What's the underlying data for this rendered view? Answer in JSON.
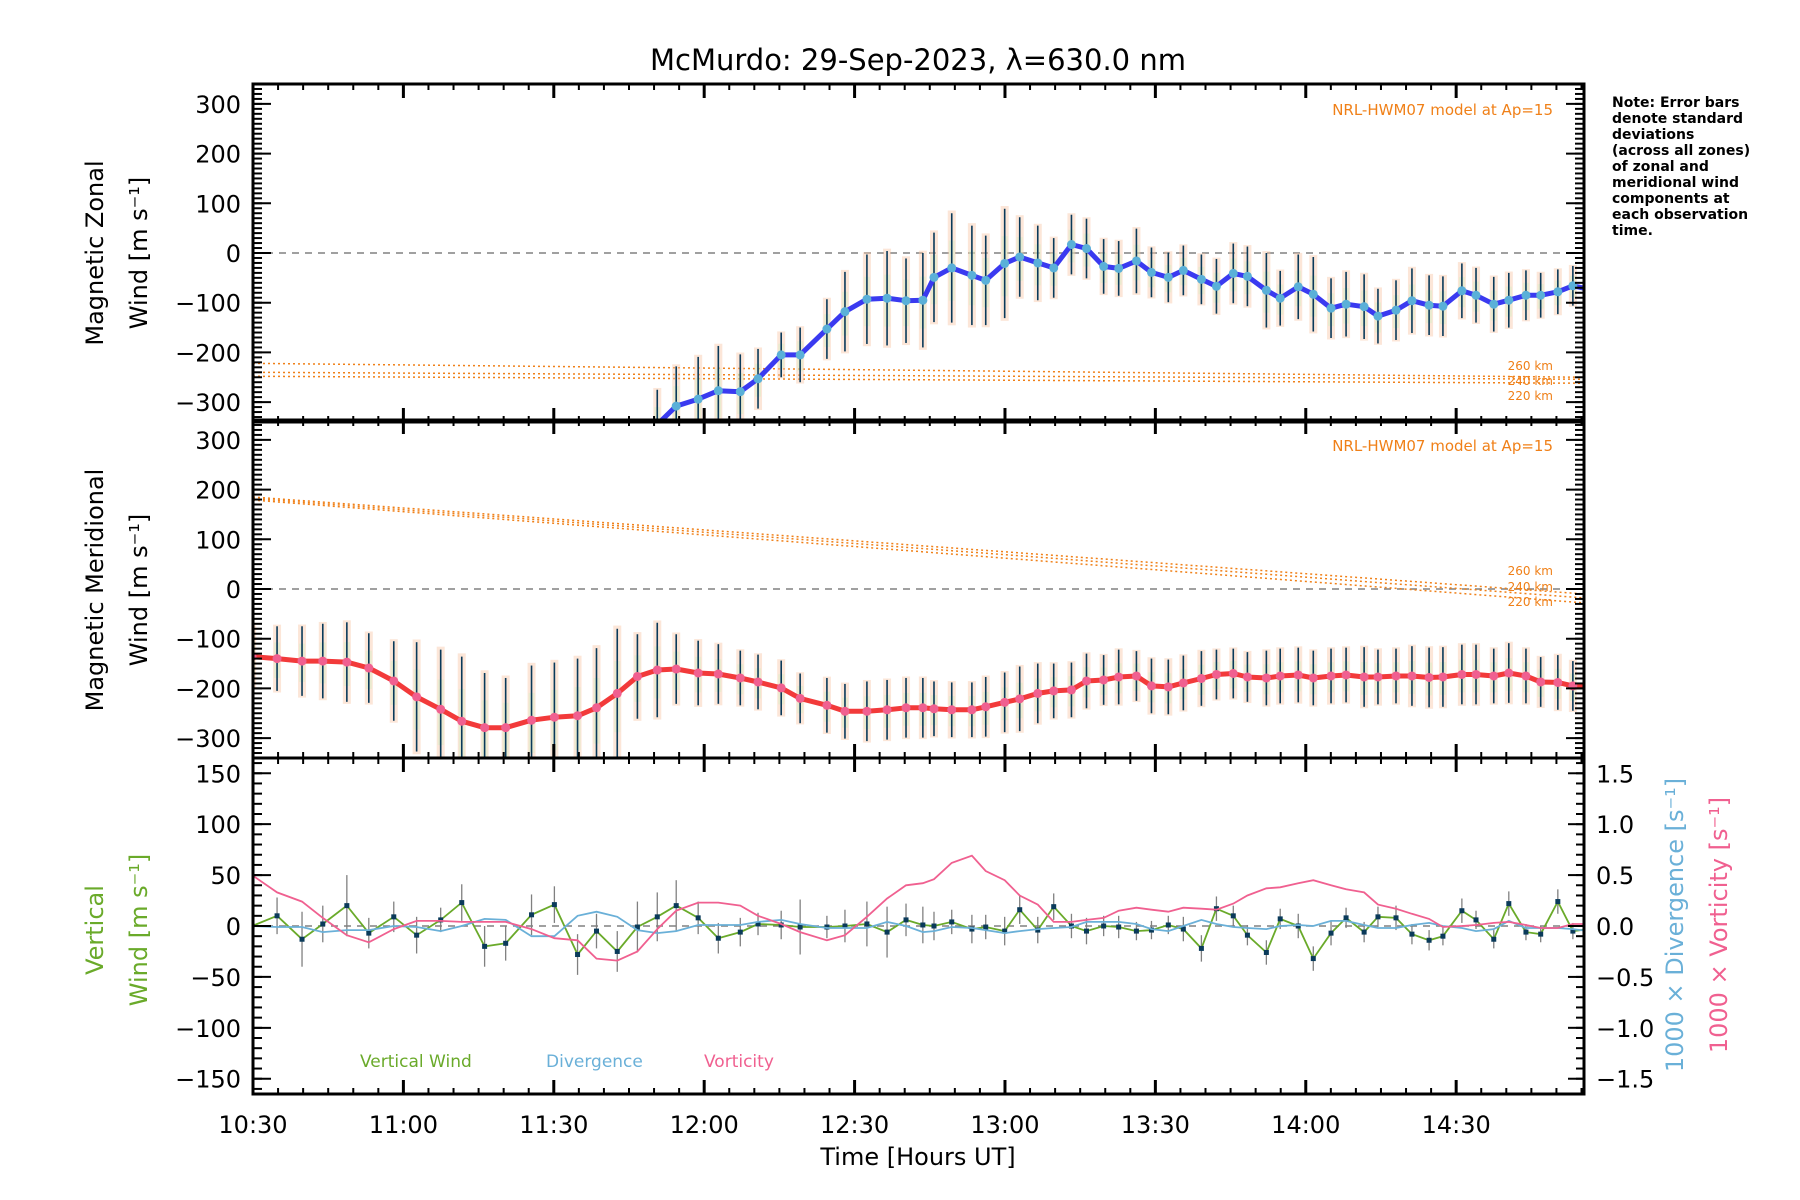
{
  "title": "McMurdo: 29-Sep-2023, λ=630.0 nm",
  "note": [
    "Note: Error bars",
    "denote standard",
    "deviations",
    "(across all zones)",
    "of zonal and",
    "meridional wind",
    "components at",
    "each observation",
    "time."
  ],
  "colors": {
    "zonal": "#3a3af0",
    "meridional": "#f23a3a",
    "vertical": "#6aaa2a",
    "divergence": "#6ab0d8",
    "vorticity": "#f06090",
    "model": "#f08018",
    "marker_zonal": "#5ab0d8",
    "marker_meridional": "#f06090",
    "errbar": "#0a3a5a",
    "zero": "#808080"
  },
  "chart_data": [
    {
      "type": "line",
      "panel": "zonal",
      "ylabel": [
        "Magnetic Zonal",
        "Wind [m s⁻¹]"
      ],
      "ylim": [
        -340,
        340
      ],
      "yticks": [
        "300",
        "200",
        "100",
        "0",
        "−100",
        "−200",
        "−300"
      ],
      "ytick_values": [
        300,
        200,
        100,
        0,
        -100,
        -200,
        -300
      ],
      "xlim": [
        10.5,
        14.925
      ],
      "model_label": "NRL-HWM07 model at Ap=15",
      "model_altitudes": [
        "260 km",
        "240 km",
        "220 km"
      ],
      "model_series": [
        {
          "name": "260 km",
          "x": [
            10.5,
            14.925
          ],
          "values": [
            -222,
            -250
          ]
        },
        {
          "name": "240 km",
          "x": [
            10.5,
            14.925
          ],
          "values": [
            -240,
            -254
          ]
        },
        {
          "name": "220 km",
          "x": [
            10.5,
            14.925
          ],
          "values": [
            -248,
            -262
          ]
        }
      ],
      "series_name": "Magnetic Zonal Wind",
      "values": [
        null,
        null,
        null,
        null,
        null,
        null,
        null,
        null,
        null,
        null,
        null,
        null,
        null,
        null,
        null,
        null,
        null,
        null,
        -345,
        -308,
        -294,
        -277,
        -279,
        -253,
        -205,
        -205,
        -153,
        -118,
        -93,
        -91,
        -96,
        -95,
        -49,
        -30,
        -45,
        -55,
        -21,
        -8,
        -20,
        -30,
        17,
        9,
        -27,
        -31,
        -16,
        -39,
        -49,
        -35,
        -53,
        -67,
        -41,
        -47,
        -75,
        -91,
        -68,
        -83,
        -111,
        -103,
        -108,
        -127,
        -115,
        -96,
        -105,
        -107,
        -76,
        -85,
        -103,
        -95,
        -85,
        -85,
        -78,
        -66,
        -73
      ],
      "error": [
        null,
        null,
        null,
        null,
        null,
        null,
        null,
        null,
        null,
        null,
        null,
        null,
        null,
        40,
        45,
        50,
        55,
        60,
        70,
        80,
        85,
        90,
        75,
        60,
        45,
        55,
        60,
        80,
        90,
        95,
        85,
        95,
        90,
        110,
        100,
        90,
        110,
        80,
        75,
        60,
        60,
        60,
        55,
        55,
        65,
        50,
        50,
        50,
        50,
        55,
        60,
        60,
        75,
        55,
        65,
        75,
        60,
        65,
        65,
        55,
        60,
        65,
        60,
        60,
        55,
        55,
        55,
        55,
        50,
        45,
        45,
        40,
        40
      ]
    },
    {
      "type": "line",
      "panel": "meridional",
      "ylabel": [
        "Magnetic Meridional",
        "Wind [m s⁻¹]"
      ],
      "ylim": [
        -340,
        340
      ],
      "yticks": [
        "300",
        "200",
        "100",
        "0",
        "−100",
        "−200",
        "−300"
      ],
      "ytick_values": [
        300,
        200,
        100,
        0,
        -100,
        -200,
        -300
      ],
      "xlim": [
        10.5,
        14.925
      ],
      "model_label": "NRL-HWM07 model at Ap=15",
      "model_altitudes": [
        "260 km",
        "240 km",
        "220 km"
      ],
      "model_series": [
        {
          "name": "260 km",
          "x": [
            10.5,
            14.925
          ],
          "values": [
            185,
            -10
          ]
        },
        {
          "name": "240 km",
          "x": [
            10.5,
            14.925
          ],
          "values": [
            182,
            -18
          ]
        },
        {
          "name": "220 km",
          "x": [
            10.5,
            14.925
          ],
          "values": [
            179,
            -28
          ]
        }
      ],
      "series_name": "Magnetic Meridional Wind",
      "values": [
        -136,
        -140,
        -145,
        -145,
        -147,
        -159,
        -185,
        -217,
        -242,
        -266,
        -279,
        -279,
        -264,
        -258,
        -255,
        -239,
        -210,
        -176,
        -163,
        -161,
        -169,
        -171,
        -179,
        -187,
        -199,
        -220,
        -234,
        -246,
        -246,
        -243,
        -239,
        -239,
        -241,
        -243,
        -243,
        -237,
        -228,
        -221,
        -210,
        -205,
        -203,
        -185,
        -183,
        -177,
        -175,
        -195,
        -197,
        -189,
        -180,
        -172,
        -170,
        -177,
        -179,
        -175,
        -173,
        -179,
        -175,
        -173,
        -177,
        -177,
        -175,
        -175,
        -178,
        -177,
        -172,
        -172,
        -175,
        -169,
        -175,
        -187,
        -188,
        -195,
        -198
      ],
      "error": [
        60,
        65,
        70,
        75,
        80,
        70,
        80,
        110,
        120,
        130,
        110,
        100,
        110,
        110,
        115,
        120,
        130,
        85,
        95,
        70,
        65,
        60,
        55,
        55,
        55,
        50,
        55,
        55,
        60,
        60,
        60,
        60,
        55,
        55,
        55,
        60,
        60,
        65,
        60,
        55,
        55,
        55,
        50,
        55,
        50,
        55,
        55,
        55,
        55,
        50,
        50,
        50,
        55,
        55,
        55,
        55,
        55,
        55,
        60,
        55,
        55,
        60,
        60,
        60,
        60,
        60,
        55,
        60,
        55,
        50,
        55,
        50,
        55
      ]
    },
    {
      "type": "line",
      "panel": "vertical",
      "ylabel": [
        "Vertical",
        "Wind [m s⁻¹]"
      ],
      "ylabel_right_div": "1000 × Divergence [s⁻¹]",
      "ylabel_right_vort": "1000 × Vorticity [s⁻¹]",
      "ylim": [
        -165,
        165
      ],
      "yticks": [
        "150",
        "100",
        "50",
        "0",
        "−50",
        "−100",
        "−150"
      ],
      "ytick_values": [
        150,
        100,
        50,
        0,
        -50,
        -100,
        -150
      ],
      "yticks_right": [
        "1.5",
        "1.0",
        "0.5",
        "0.0",
        "−0.5",
        "−1.0",
        "−1.5"
      ],
      "ytick_right_values": [
        1.5,
        1.0,
        0.5,
        0.0,
        -0.5,
        -1.0,
        -1.5
      ],
      "ylim_right": [
        -1.65,
        1.65
      ],
      "xlim": [
        10.5,
        14.925
      ],
      "xlabel": "Time [Hours UT]",
      "xticks": [
        "10:30",
        "11:00",
        "11:30",
        "12:00",
        "12:30",
        "13:00",
        "13:30",
        "14:00",
        "14:30"
      ],
      "xtick_values": [
        10.5,
        11.0,
        11.5,
        12.0,
        12.5,
        13.0,
        13.5,
        14.0,
        14.5
      ],
      "legend": [
        "Vertical Wind",
        "Divergence",
        "Vorticity"
      ],
      "legend_position": "bottom-left",
      "series": [
        {
          "name": "Vertical Wind",
          "values": [
            0,
            10,
            -13,
            2,
            20,
            -7,
            9,
            -9,
            6,
            23,
            -20,
            -17,
            11,
            21,
            -28,
            -5,
            -25,
            -1,
            9,
            20,
            8,
            -12,
            -6,
            2,
            1,
            -1,
            -1,
            0,
            2,
            -6,
            6,
            1,
            0,
            4,
            -3,
            -1,
            -5,
            16,
            -4,
            19,
            0,
            -5,
            0,
            -1,
            -5,
            -4,
            1,
            -3,
            -22,
            17,
            10,
            -9,
            -26,
            7,
            0,
            -32,
            -7,
            8,
            -6,
            9,
            8,
            -8,
            -14,
            -10,
            15,
            6,
            -13,
            22,
            -6,
            -8,
            24,
            -5,
            -3
          ],
          "error": [
            0,
            18,
            27,
            18,
            30,
            15,
            15,
            18,
            12,
            18,
            20,
            17,
            20,
            18,
            20,
            17,
            20,
            25,
            24,
            25,
            16,
            15,
            14,
            11,
            14,
            27,
            11,
            16,
            22,
            25,
            16,
            18,
            14,
            12,
            14,
            12,
            14,
            14,
            13,
            13,
            12,
            13,
            10,
            11,
            9,
            9,
            9,
            12,
            13,
            12,
            10,
            10,
            12,
            10,
            12,
            12,
            12,
            10,
            10,
            10,
            12,
            10,
            10,
            9,
            12,
            9,
            9,
            12,
            8,
            8,
            12,
            8,
            10
          ]
        },
        {
          "name": "Divergence",
          "axis": "right",
          "values": [
            0,
            -0.01,
            -0.01,
            -0.06,
            -0.04,
            -0.04,
            0,
            -0.01,
            -0.05,
            0,
            0.07,
            0.06,
            -0.1,
            -0.1,
            0.1,
            0.14,
            0.09,
            -0.04,
            -0.07,
            -0.05,
            0.01,
            0.01,
            0.01,
            0.04,
            0.06,
            0.02,
            -0.02,
            -0.02,
            -0.02,
            0.04,
            0,
            -0.06,
            -0.05,
            -0.01,
            -0.02,
            -0.04,
            -0.07,
            -0.05,
            -0.03,
            -0.02,
            -0.01,
            0.04,
            0.04,
            0.04,
            0.02,
            -0.03,
            -0.05,
            0,
            0.06,
            0.02,
            -0.01,
            -0.02,
            -0.03,
            0,
            0.01,
            0,
            0.05,
            0.05,
            0.01,
            -0.02,
            -0.02,
            0.01,
            0.03,
            0,
            -0.02,
            -0.05,
            -0.03,
            0.05,
            -0.02,
            -0.02,
            -0.02,
            -0.03,
            -0.05
          ]
        },
        {
          "name": "Vorticity",
          "axis": "right",
          "values": [
            0.5,
            0.33,
            0.24,
            0.08,
            -0.09,
            -0.16,
            -0.03,
            0.05,
            0.05,
            0.04,
            0.04,
            0.04,
            -0.03,
            -0.12,
            -0.14,
            -0.32,
            -0.34,
            -0.25,
            -0.03,
            0.15,
            0.23,
            0.23,
            0.2,
            0.1,
            0.02,
            -0.06,
            -0.14,
            -0.09,
            0.09,
            0.27,
            0.4,
            0.42,
            0.46,
            0.62,
            0.69,
            0.54,
            0.45,
            0.3,
            0.21,
            0.04,
            0.04,
            0.06,
            0.08,
            0.15,
            0.18,
            0.16,
            0.14,
            0.18,
            0.17,
            0.16,
            0.22,
            0.3,
            0.37,
            0.38,
            0.42,
            0.45,
            0.4,
            0.36,
            0.33,
            0.21,
            0.17,
            0.12,
            0.07,
            -0.01,
            0,
            0.01,
            0.03,
            0.04,
            0.01,
            -0.02,
            -0.02,
            0.02,
            0.02
          ]
        }
      ]
    }
  ],
  "time_hours": [
    10.497,
    10.58,
    10.663,
    10.732,
    10.812,
    10.885,
    10.968,
    11.044,
    11.124,
    11.194,
    11.27,
    11.34,
    11.426,
    11.502,
    11.579,
    11.642,
    11.711,
    11.778,
    11.844,
    11.907,
    11.98,
    12.047,
    12.12,
    12.179,
    12.256,
    12.319,
    12.408,
    12.468,
    12.541,
    12.608,
    12.671,
    12.727,
    12.764,
    12.823,
    12.89,
    12.936,
    12.999,
    13.049,
    13.109,
    13.162,
    13.221,
    13.271,
    13.328,
    13.378,
    13.437,
    13.487,
    13.543,
    13.593,
    13.653,
    13.703,
    13.759,
    13.806,
    13.869,
    13.915,
    13.975,
    14.025,
    14.084,
    14.134,
    14.194,
    14.24,
    14.3,
    14.353,
    14.41,
    14.456,
    14.519,
    14.566,
    14.625,
    14.675,
    14.732,
    14.781,
    14.838,
    14.888,
    14.941
  ]
}
